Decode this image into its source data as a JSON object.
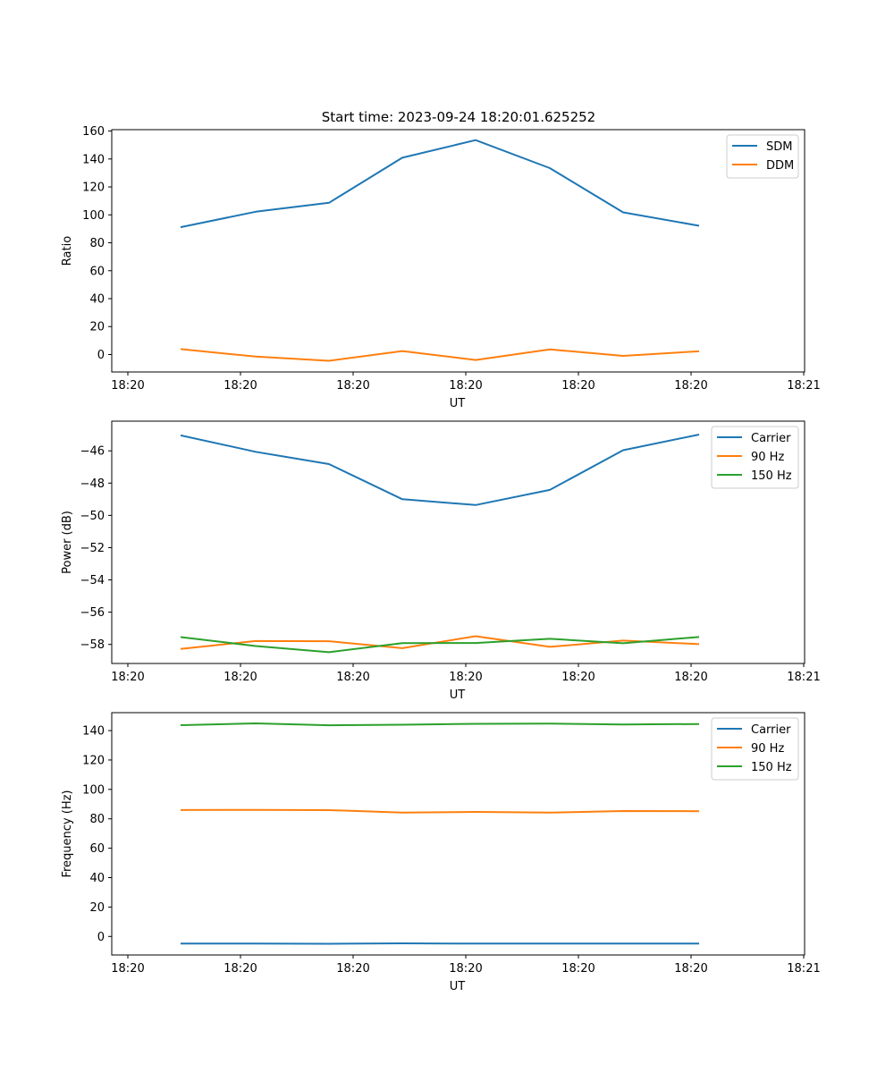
{
  "figure_title": "Start time: 2023-09-24 18:20:01.625252",
  "colors": {
    "blue": "#1f77b4",
    "orange": "#ff7f0e",
    "green": "#2ca02c"
  },
  "chart_data": [
    {
      "type": "line",
      "title": "Start time: 2023-09-24 18:20:01.625252",
      "xlabel": "UT",
      "ylabel": "Ratio",
      "x_tick_labels": [
        "18:20",
        "18:20",
        "18:20",
        "18:20",
        "18:20",
        "18:20",
        "18:21"
      ],
      "y_ticks": [
        0,
        20,
        40,
        60,
        80,
        100,
        120,
        140,
        160
      ],
      "y_tick_labels": [
        "0",
        "20",
        "40",
        "60",
        "80",
        "100",
        "120",
        "140",
        "160"
      ],
      "ylim": [
        -12.5,
        161
      ],
      "legend_position": "top-right",
      "series": [
        {
          "name": "SDM",
          "color": "#1f77b4",
          "values": [
            91.3,
            102.2,
            108.6,
            140.9,
            153.5,
            133.5,
            101.8,
            92.3
          ]
        },
        {
          "name": "DDM",
          "color": "#ff7f0e",
          "values": [
            3.8,
            -1.5,
            -4.5,
            2.5,
            -3.9,
            3.7,
            -1.0,
            2.3
          ]
        }
      ]
    },
    {
      "type": "line",
      "xlabel": "UT",
      "ylabel": "Power (dB)",
      "x_tick_labels": [
        "18:20",
        "18:20",
        "18:20",
        "18:20",
        "18:20",
        "18:20",
        "18:21"
      ],
      "y_ticks": [
        -58,
        -56,
        -54,
        -52,
        -50,
        -48,
        -46
      ],
      "y_tick_labels": [
        "−58",
        "−56",
        "−54",
        "−52",
        "−50",
        "−48",
        "−46"
      ],
      "ylim": [
        -59.18,
        -44.16
      ],
      "legend_position": "top-right",
      "series": [
        {
          "name": "Carrier",
          "color": "#1f77b4",
          "values": [
            -45.05,
            -46.06,
            -46.82,
            -49.0,
            -49.36,
            -48.42,
            -45.96,
            -45.0
          ]
        },
        {
          "name": "90 Hz",
          "color": "#ff7f0e",
          "values": [
            -58.27,
            -57.79,
            -57.8,
            -58.23,
            -57.49,
            -58.15,
            -57.76,
            -57.98
          ]
        },
        {
          "name": "150 Hz",
          "color": "#2ca02c",
          "values": [
            -57.55,
            -58.1,
            -58.48,
            -57.92,
            -57.91,
            -57.65,
            -57.93,
            -57.54
          ]
        }
      ]
    },
    {
      "type": "line",
      "xlabel": "UT",
      "ylabel": "Frequency (Hz)",
      "x_tick_labels": [
        "18:20",
        "18:20",
        "18:20",
        "18:20",
        "18:20",
        "18:20",
        "18:21"
      ],
      "y_ticks": [
        0,
        20,
        40,
        60,
        80,
        100,
        120,
        140
      ],
      "y_tick_labels": [
        "0",
        "20",
        "40",
        "60",
        "80",
        "100",
        "120",
        "140"
      ],
      "ylim": [
        -12.6,
        152.2
      ],
      "legend_position": "top-right",
      "series": [
        {
          "name": "Carrier",
          "color": "#1f77b4",
          "values": [
            -4.8,
            -4.8,
            -5.0,
            -4.7,
            -4.9,
            -4.8,
            -4.8,
            -4.8
          ]
        },
        {
          "name": "90 Hz",
          "color": "#ff7f0e",
          "values": [
            86.0,
            86.1,
            85.9,
            84.3,
            84.7,
            84.2,
            85.3,
            85.2
          ]
        },
        {
          "name": "150 Hz",
          "color": "#2ca02c",
          "values": [
            143.7,
            144.9,
            143.6,
            144.0,
            144.6,
            144.7,
            144.2,
            144.5
          ]
        }
      ]
    }
  ]
}
